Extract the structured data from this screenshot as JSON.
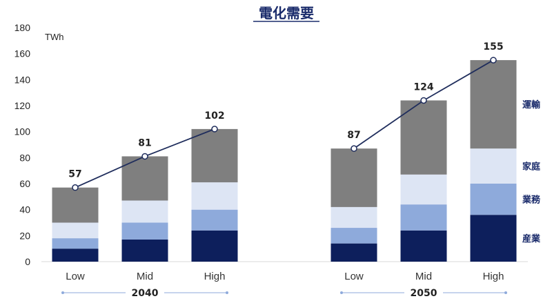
{
  "chart_data": {
    "type": "bar",
    "stacked": true,
    "title": "電化需要",
    "unit": "TWh",
    "ylim": [
      0,
      180
    ],
    "yticks": [
      0,
      20,
      40,
      60,
      80,
      100,
      120,
      140,
      160,
      180
    ],
    "groups": [
      {
        "label": "2040",
        "categories": [
          "Low",
          "Mid",
          "High"
        ],
        "totals": [
          57,
          81,
          102
        ]
      },
      {
        "label": "2050",
        "categories": [
          "Low",
          "Mid",
          "High"
        ],
        "totals": [
          87,
          124,
          155
        ]
      }
    ],
    "series": [
      {
        "name": "産業",
        "color": "#0d1f5c",
        "values": [
          10,
          17,
          24,
          14,
          24,
          36
        ]
      },
      {
        "name": "業務",
        "color": "#8eaadb",
        "values": [
          8,
          13,
          16,
          12,
          20,
          24
        ]
      },
      {
        "name": "家庭",
        "color": "#dde5f4",
        "values": [
          12,
          17,
          21,
          16,
          23,
          27
        ]
      },
      {
        "name": "運輸",
        "color": "#7f7f7f",
        "values": [
          27,
          34,
          41,
          45,
          57,
          68
        ]
      }
    ],
    "line_color": "#1f2d5c"
  }
}
